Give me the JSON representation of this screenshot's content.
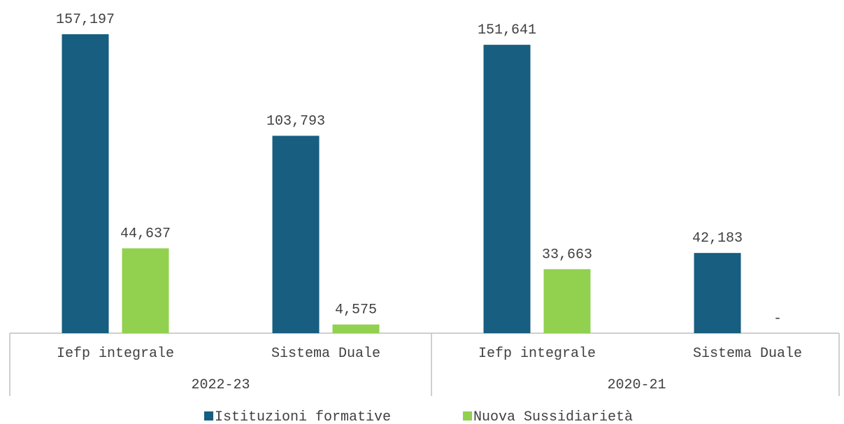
{
  "chart_data": {
    "type": "bar",
    "title": "",
    "xlabel": "",
    "ylabel": "",
    "ylim": [
      0,
      160000
    ],
    "grid": false,
    "legend_position": "bottom",
    "groups": [
      {
        "label": "2022-23",
        "categories": [
          "Iefp integrale",
          "Sistema Duale"
        ]
      },
      {
        "label": "2020-21",
        "categories": [
          "Iefp integrale",
          "Sistema Duale"
        ]
      }
    ],
    "series": [
      {
        "name": "Istituzioni formative",
        "color": "#175e80",
        "values": [
          157197,
          103793,
          151641,
          42183
        ],
        "labels": [
          "157,197",
          "103,793",
          "151,641",
          "42,183"
        ]
      },
      {
        "name": "Nuova Sussidiarietà",
        "color": "#92d050",
        "values": [
          44637,
          4575,
          33663,
          0
        ],
        "labels": [
          "44,637",
          "4,575",
          "33,663",
          "-"
        ]
      }
    ]
  }
}
